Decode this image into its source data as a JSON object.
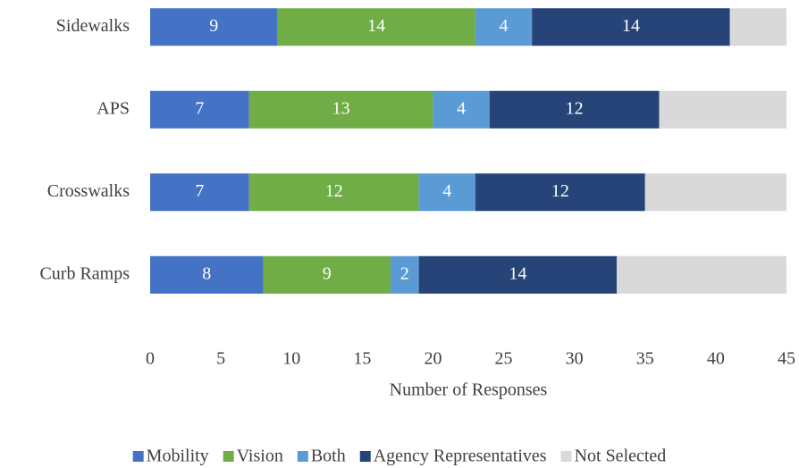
{
  "chart_data": {
    "type": "stacked_barh",
    "categories": [
      "Sidewalks",
      "APS",
      "Crosswalks",
      "Curb Ramps"
    ],
    "series": [
      {
        "name": "Mobility",
        "color": "#4472c4",
        "values": [
          9,
          7,
          7,
          8
        ]
      },
      {
        "name": "Vision",
        "color": "#70ad47",
        "values": [
          14,
          13,
          12,
          9
        ]
      },
      {
        "name": "Both",
        "color": "#5b9bd5",
        "values": [
          4,
          4,
          4,
          2
        ]
      },
      {
        "name": "Agency Representatives",
        "color": "#264478",
        "values": [
          14,
          12,
          12,
          14
        ]
      },
      {
        "name": "Not Selected",
        "color": "#d9d9d9",
        "values": [
          4,
          9,
          10,
          12
        ],
        "show_values": false
      }
    ],
    "xlabel": "Number of Responses",
    "xlim": [
      0,
      45
    ],
    "xticks": [
      0,
      5,
      10,
      15,
      20,
      25,
      30,
      35,
      40,
      45
    ],
    "legend": "bottom"
  }
}
